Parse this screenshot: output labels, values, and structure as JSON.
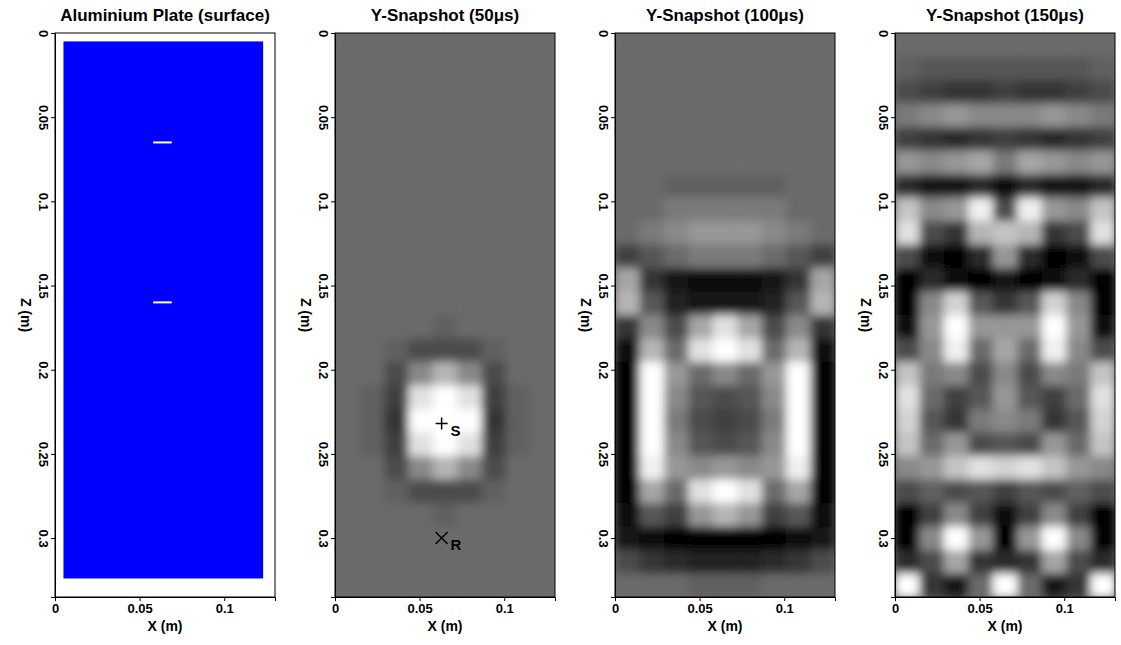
{
  "chart_data": [
    {
      "type": "plate",
      "title": "Aluminium Plate (surface)",
      "x_label": "X (m)",
      "y_label": "Z (m)",
      "xlim": [
        0,
        0.13
      ],
      "ylim": [
        0.335,
        0
      ],
      "xticks": [
        0,
        0.05,
        0.1
      ],
      "yticks": [
        0,
        0.05,
        0.1,
        0.15,
        0.2,
        0.25,
        0.3
      ],
      "color": "#0000ff",
      "plate": {
        "x": [
          0.005,
          0.123
        ],
        "y": [
          0.005,
          0.324
        ]
      },
      "slits": [
        {
          "x": [
            0.058,
            0.069
          ],
          "y": 0.065
        },
        {
          "x": [
            0.058,
            0.069
          ],
          "y": 0.16
        }
      ]
    },
    {
      "type": "heatmap",
      "title": "Y-Snapshot (50μs)",
      "x_label": "X (m)",
      "y_label": "Z (m)",
      "xlim": [
        0,
        0.13
      ],
      "ylim": [
        0.335,
        0
      ],
      "xticks": [
        0,
        0.05,
        0.1
      ],
      "yticks": [
        0,
        0.05,
        0.1,
        0.15,
        0.2,
        0.25,
        0.3
      ],
      "color_range": [
        -1,
        1
      ],
      "annotations": [
        {
          "text": "S",
          "x": 0.063,
          "y": 0.232,
          "marker": "plus"
        },
        {
          "text": "R",
          "x": 0.063,
          "y": 0.3,
          "marker": "x"
        }
      ],
      "cells": [
        [
          0,
          0,
          0,
          0,
          0,
          0,
          0,
          0,
          0
        ],
        [
          0,
          0,
          0,
          0,
          0,
          0,
          0,
          0,
          0
        ],
        [
          0,
          0,
          0,
          0,
          0,
          0,
          0,
          0,
          0
        ],
        [
          0,
          0,
          0,
          0,
          0,
          0,
          0,
          0,
          0
        ],
        [
          0,
          0,
          0,
          0,
          0,
          0,
          0,
          0,
          0
        ],
        [
          0,
          0,
          0,
          0,
          0,
          0,
          0,
          0,
          0
        ],
        [
          0,
          0,
          0,
          0,
          0,
          0,
          0,
          0,
          0
        ],
        [
          0,
          0,
          0,
          0,
          0,
          0,
          0,
          0,
          0
        ],
        [
          0,
          0,
          0,
          0,
          0,
          0,
          0,
          0,
          0
        ],
        [
          0,
          0,
          0,
          0,
          0,
          0,
          0,
          0,
          0
        ],
        [
          0,
          0,
          0,
          0,
          0,
          0,
          0,
          0,
          0
        ],
        [
          0,
          0,
          0,
          0,
          0,
          0,
          0,
          0,
          0
        ],
        [
          0,
          0,
          0,
          0,
          -0.1,
          0,
          0,
          0,
          0
        ],
        [
          0,
          0,
          -0.1,
          -0.3,
          -0.3,
          -0.3,
          -0.1,
          0,
          0
        ],
        [
          0,
          0,
          -0.3,
          0.2,
          0.5,
          0.2,
          -0.3,
          0,
          0
        ],
        [
          0,
          -0.1,
          -0.4,
          0.8,
          1,
          0.8,
          -0.4,
          -0.1,
          0
        ],
        [
          0,
          -0.1,
          -0.5,
          1,
          1,
          1,
          -0.5,
          -0.1,
          0
        ],
        [
          0,
          -0.1,
          -0.4,
          0.8,
          1,
          0.8,
          -0.4,
          -0.1,
          0
        ],
        [
          0,
          0,
          -0.3,
          0.2,
          0.5,
          0.2,
          -0.3,
          0,
          0
        ],
        [
          0,
          0,
          -0.1,
          -0.3,
          -0.3,
          -0.3,
          -0.1,
          0,
          0
        ],
        [
          0,
          0,
          0,
          0,
          -0.1,
          0,
          0,
          0,
          0
        ],
        [
          0,
          0,
          0,
          0,
          0,
          0,
          0,
          0,
          0
        ],
        [
          0,
          0,
          0,
          0,
          0,
          0,
          0,
          0,
          0
        ],
        [
          0,
          0,
          0,
          0,
          0,
          0,
          0,
          0,
          0
        ]
      ]
    },
    {
      "type": "heatmap",
      "title": "Y-Snapshot (100μs)",
      "x_label": "X (m)",
      "y_label": "Z (m)",
      "xlim": [
        0,
        0.13
      ],
      "ylim": [
        0.335,
        0
      ],
      "xticks": [
        0,
        0.05,
        0.1
      ],
      "yticks": [
        0,
        0.05,
        0.1,
        0.15,
        0.2,
        0.25,
        0.3
      ],
      "color_range": [
        -1,
        1
      ],
      "cells": [
        [
          0,
          0,
          0,
          0,
          0,
          0,
          0,
          0,
          0
        ],
        [
          0,
          0,
          0,
          0,
          0,
          0,
          0,
          0,
          0
        ],
        [
          0,
          0,
          0,
          0,
          0,
          0,
          0,
          0,
          0
        ],
        [
          0,
          0,
          0,
          0,
          0,
          0,
          0,
          0,
          0
        ],
        [
          0,
          0,
          0,
          0,
          0,
          0,
          0,
          0,
          0
        ],
        [
          0,
          0,
          0,
          0,
          0,
          0,
          0,
          0,
          0
        ],
        [
          0,
          0,
          -0.1,
          -0.1,
          -0.1,
          -0.1,
          -0.1,
          0,
          0
        ],
        [
          0,
          0,
          0.1,
          0.1,
          0.1,
          0.1,
          0.1,
          0,
          0
        ],
        [
          0,
          0.1,
          0.2,
          0.3,
          0.3,
          0.3,
          0.2,
          0.1,
          0
        ],
        [
          -0.4,
          -0.2,
          0,
          0.1,
          0.1,
          0.1,
          0,
          -0.2,
          -0.4
        ],
        [
          0.4,
          -0.5,
          -0.8,
          -0.9,
          -0.9,
          -0.9,
          -0.8,
          -0.5,
          0.4
        ],
        [
          0.5,
          -0.2,
          -0.7,
          -0.8,
          -0.8,
          -0.8,
          -0.7,
          -0.2,
          0.5
        ],
        [
          -0.5,
          0.2,
          -0.3,
          0.4,
          0.8,
          0.4,
          -0.3,
          0.2,
          -0.5
        ],
        [
          -0.9,
          0.5,
          0,
          0.8,
          1,
          0.8,
          0,
          0.5,
          -0.9
        ],
        [
          -1,
          1,
          0.3,
          0,
          0.2,
          0,
          0.3,
          1,
          -1
        ],
        [
          -1,
          1,
          0.2,
          -0.2,
          -0.3,
          -0.2,
          0.2,
          1,
          -1
        ],
        [
          -1,
          1,
          0.1,
          -0.3,
          -0.4,
          -0.3,
          0.1,
          1,
          -1
        ],
        [
          -1,
          1,
          0.2,
          -0.2,
          -0.3,
          -0.2,
          0.2,
          1,
          -1
        ],
        [
          -1,
          0.9,
          0.3,
          0.2,
          0.3,
          0.2,
          0.3,
          0.9,
          -1
        ],
        [
          -1,
          0.4,
          0,
          0.8,
          1,
          0.8,
          0,
          0.4,
          -1
        ],
        [
          -0.9,
          -0.2,
          -0.4,
          0.3,
          0.5,
          0.3,
          -0.4,
          -0.2,
          -0.9
        ],
        [
          -0.8,
          -0.9,
          -1,
          -1,
          -1,
          -1,
          -1,
          -0.9,
          -0.8
        ],
        [
          -0.3,
          -0.5,
          -0.6,
          -0.7,
          -0.7,
          -0.7,
          -0.6,
          -0.5,
          -0.3
        ],
        [
          0,
          0,
          0,
          -0.1,
          -0.1,
          -0.1,
          0,
          0,
          0
        ]
      ]
    },
    {
      "type": "heatmap",
      "title": "Y-Snapshot (150μs)",
      "x_label": "X (m)",
      "y_label": "Z (m)",
      "xlim": [
        0,
        0.13
      ],
      "ylim": [
        0.335,
        0
      ],
      "xticks": [
        0,
        0.05,
        0.1
      ],
      "yticks": [
        0,
        0.05,
        0.1,
        0.15,
        0.2,
        0.25,
        0.3
      ],
      "color_range": [
        -1,
        1
      ],
      "cells": [
        [
          0,
          0,
          0,
          0,
          0,
          0,
          0,
          0,
          0
        ],
        [
          -0.1,
          -0.2,
          -0.2,
          -0.2,
          -0.2,
          -0.2,
          -0.2,
          -0.2,
          -0.1
        ],
        [
          -0.3,
          -0.4,
          -0.5,
          -0.5,
          -0.4,
          -0.5,
          -0.5,
          -0.4,
          -0.3
        ],
        [
          0.1,
          0.2,
          0.3,
          0.2,
          0.2,
          0.2,
          0.3,
          0.2,
          0.1
        ],
        [
          -0.4,
          -0.5,
          -0.6,
          -0.5,
          -0.4,
          -0.5,
          -0.6,
          -0.5,
          -0.4
        ],
        [
          0.3,
          0.2,
          0.3,
          0.4,
          0.1,
          0.4,
          0.3,
          0.2,
          0.3
        ],
        [
          -0.6,
          -0.8,
          -0.8,
          -0.6,
          -0.9,
          -0.6,
          -0.8,
          -0.8,
          -0.6
        ],
        [
          0.6,
          0.2,
          0.3,
          0.9,
          -0.3,
          0.9,
          0.3,
          0.2,
          0.6
        ],
        [
          0.8,
          -0.3,
          -0.5,
          0.5,
          0.6,
          0.5,
          -0.5,
          -0.3,
          0.8
        ],
        [
          -0.3,
          -0.9,
          -1,
          -0.6,
          0.3,
          -0.6,
          -1,
          -0.9,
          -0.3
        ],
        [
          -1,
          -0.6,
          -0.9,
          -1,
          -0.8,
          -1,
          -0.9,
          -0.6,
          -1
        ],
        [
          -1,
          0.2,
          0.7,
          -0.2,
          -0.5,
          -0.2,
          0.7,
          0.2,
          -1
        ],
        [
          -0.9,
          0.3,
          1,
          0.3,
          0.3,
          0.3,
          1,
          0.3,
          -0.9
        ],
        [
          -0.3,
          0.2,
          0.9,
          0,
          0.4,
          0,
          0.9,
          0.2,
          -0.3
        ],
        [
          0.6,
          0.1,
          0.2,
          -0.3,
          0.2,
          -0.3,
          0.2,
          0.1,
          0.6
        ],
        [
          0.8,
          0,
          -0.4,
          -0.2,
          0.3,
          -0.2,
          -0.4,
          0,
          0.8
        ],
        [
          0.7,
          -0.2,
          -0.5,
          0.1,
          0.2,
          0.1,
          -0.5,
          -0.2,
          0.7
        ],
        [
          0.6,
          0,
          0.3,
          -0.3,
          -0.2,
          -0.3,
          0.3,
          0,
          0.6
        ],
        [
          0.2,
          0.3,
          0.6,
          0.8,
          0.7,
          0.8,
          0.6,
          0.3,
          0.2
        ],
        [
          -0.3,
          -0.1,
          -0.3,
          -0.2,
          -0.4,
          -0.2,
          -0.3,
          -0.1,
          -0.3
        ],
        [
          -1,
          -0.4,
          0.2,
          -0.4,
          -0.9,
          -0.4,
          0.2,
          -0.4,
          -1
        ],
        [
          -1,
          0.2,
          1,
          0.3,
          -1,
          0.3,
          1,
          0.2,
          -1
        ],
        [
          -0.6,
          -0.3,
          0.4,
          -0.5,
          -0.6,
          -0.5,
          0.4,
          -0.3,
          -0.6
        ],
        [
          1,
          -0.5,
          -0.8,
          0,
          1,
          0,
          -0.8,
          -0.5,
          1
        ]
      ]
    }
  ]
}
